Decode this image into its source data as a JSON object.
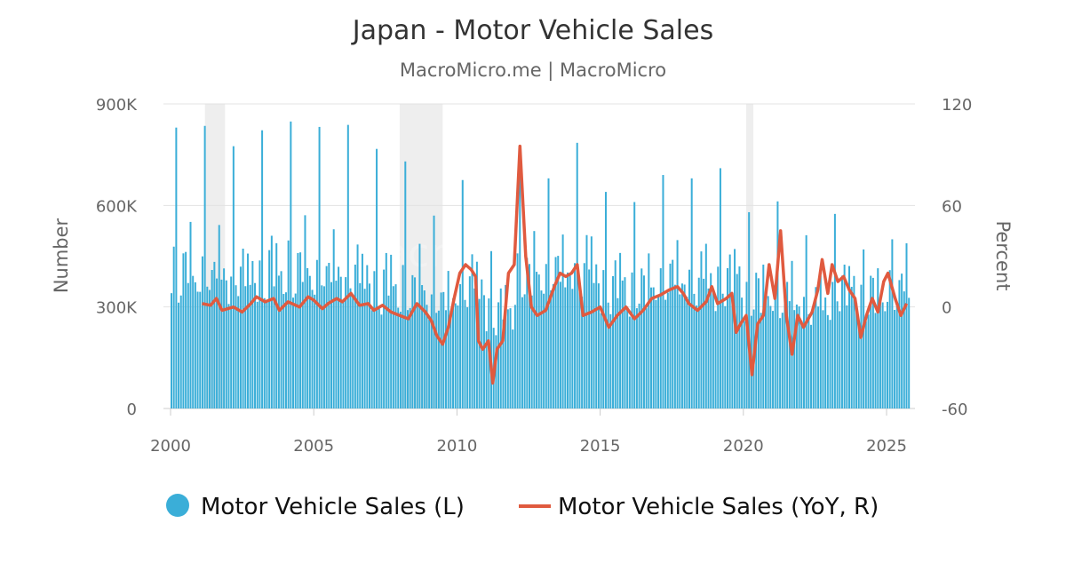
{
  "chart_data": {
    "type": "bar+line",
    "title": "Japan - Motor Vehicle Sales",
    "subtitle": "MacroMicro.me | MacroMicro",
    "watermark": "MacroMicro",
    "colors": {
      "bars": "#3aaed8",
      "line": "#e05a3f",
      "recession": "#eeeeee",
      "grid": "#e3e3e3",
      "tick_text": "#666666"
    },
    "y_left": {
      "label": "Number",
      "range": [
        0,
        900000
      ],
      "ticks": [
        0,
        300000,
        600000,
        900000
      ],
      "tick_labels": [
        "0",
        "300K",
        "600K",
        "900K"
      ]
    },
    "y_right": {
      "label": "Percent",
      "range": [
        -60,
        120
      ],
      "ticks": [
        -60,
        0,
        60,
        120
      ],
      "tick_labels": [
        "-60",
        "0",
        "60",
        "120"
      ]
    },
    "x_axis": {
      "range": [
        2000,
        2026
      ],
      "ticks": [
        2000,
        2005,
        2010,
        2015,
        2020,
        2025
      ],
      "tick_labels": [
        "2000",
        "2005",
        "2010",
        "2015",
        "2020",
        "2025"
      ]
    },
    "recession_bands": [
      [
        2001.2,
        2001.9
      ],
      [
        2008.0,
        2009.5
      ],
      [
        2020.1,
        2020.35
      ]
    ],
    "legend": [
      {
        "name": "Motor Vehicle Sales (L)",
        "marker": "circle"
      },
      {
        "name": "Motor Vehicle Sales (YoY, R)",
        "marker": "line"
      }
    ],
    "series": [
      {
        "name": "Motor Vehicle Sales (L)",
        "axis": "left",
        "kind": "bar",
        "frequency": "monthly",
        "start": 2000.0,
        "base_by_year": [
          [
            2000,
            420000
          ],
          [
            2001,
            420000
          ],
          [
            2002,
            410000
          ],
          [
            2003,
            420000
          ],
          [
            2004,
            430000
          ],
          [
            2005,
            420000
          ],
          [
            2006,
            410000
          ],
          [
            2007,
            380000
          ],
          [
            2008,
            370000
          ],
          [
            2009,
            330000
          ],
          [
            2010,
            380000
          ],
          [
            2011,
            300000
          ],
          [
            2012,
            410000
          ],
          [
            2013,
            420000
          ],
          [
            2014,
            430000
          ],
          [
            2015,
            380000
          ],
          [
            2016,
            370000
          ],
          [
            2017,
            400000
          ],
          [
            2018,
            400000
          ],
          [
            2019,
            400000
          ],
          [
            2020,
            350000
          ],
          [
            2021,
            340000
          ],
          [
            2022,
            320000
          ],
          [
            2023,
            370000
          ],
          [
            2024,
            340000
          ],
          [
            2025,
            370000
          ]
        ],
        "march_peaks": [
          [
            2000,
            830000
          ],
          [
            2001,
            835000
          ],
          [
            2002,
            775000
          ],
          [
            2003,
            822000
          ],
          [
            2004,
            848000
          ],
          [
            2005,
            832000
          ],
          [
            2006,
            838000
          ],
          [
            2007,
            767000
          ],
          [
            2008,
            730000
          ],
          [
            2009,
            570000
          ],
          [
            2010,
            675000
          ],
          [
            2011,
            465000
          ],
          [
            2012,
            762000
          ],
          [
            2013,
            680000
          ],
          [
            2014,
            785000
          ],
          [
            2015,
            640000
          ],
          [
            2016,
            610000
          ],
          [
            2017,
            690000
          ],
          [
            2018,
            680000
          ],
          [
            2019,
            710000
          ],
          [
            2020,
            580000
          ],
          [
            2021,
            612000
          ],
          [
            2022,
            512000
          ],
          [
            2023,
            575000
          ],
          [
            2024,
            470000
          ],
          [
            2025,
            500000
          ]
        ],
        "end": 2025.75
      },
      {
        "name": "Motor Vehicle Sales (YoY, R)",
        "axis": "right",
        "kind": "line",
        "points": [
          [
            2001.1,
            2
          ],
          [
            2001.4,
            1
          ],
          [
            2001.6,
            5
          ],
          [
            2001.8,
            -2
          ],
          [
            2002.2,
            0
          ],
          [
            2002.5,
            -3
          ],
          [
            2002.8,
            2
          ],
          [
            2003.0,
            6
          ],
          [
            2003.3,
            3
          ],
          [
            2003.6,
            5
          ],
          [
            2003.8,
            -2
          ],
          [
            2004.1,
            3
          ],
          [
            2004.5,
            0
          ],
          [
            2004.8,
            6
          ],
          [
            2005.0,
            4
          ],
          [
            2005.3,
            -1
          ],
          [
            2005.5,
            2
          ],
          [
            2005.8,
            5
          ],
          [
            2006.0,
            3
          ],
          [
            2006.3,
            8
          ],
          [
            2006.6,
            1
          ],
          [
            2006.9,
            2
          ],
          [
            2007.1,
            -2
          ],
          [
            2007.4,
            1
          ],
          [
            2007.7,
            -3
          ],
          [
            2008.0,
            -5
          ],
          [
            2008.3,
            -7
          ],
          [
            2008.6,
            2
          ],
          [
            2008.9,
            -3
          ],
          [
            2009.1,
            -8
          ],
          [
            2009.3,
            -17
          ],
          [
            2009.5,
            -22
          ],
          [
            2009.7,
            -12
          ],
          [
            2009.9,
            5
          ],
          [
            2010.1,
            20
          ],
          [
            2010.3,
            25
          ],
          [
            2010.5,
            22
          ],
          [
            2010.65,
            18
          ],
          [
            2010.75,
            -20
          ],
          [
            2010.9,
            -25
          ],
          [
            2011.1,
            -20
          ],
          [
            2011.25,
            -45
          ],
          [
            2011.4,
            -25
          ],
          [
            2011.6,
            -20
          ],
          [
            2011.8,
            20
          ],
          [
            2012.0,
            25
          ],
          [
            2012.2,
            95
          ],
          [
            2012.4,
            30
          ],
          [
            2012.6,
            0
          ],
          [
            2012.8,
            -5
          ],
          [
            2013.1,
            -2
          ],
          [
            2013.4,
            12
          ],
          [
            2013.6,
            20
          ],
          [
            2013.8,
            18
          ],
          [
            2014.0,
            20
          ],
          [
            2014.2,
            25
          ],
          [
            2014.4,
            -5
          ],
          [
            2014.7,
            -3
          ],
          [
            2015.0,
            0
          ],
          [
            2015.3,
            -12
          ],
          [
            2015.6,
            -5
          ],
          [
            2015.9,
            0
          ],
          [
            2016.2,
            -7
          ],
          [
            2016.5,
            -2
          ],
          [
            2016.8,
            5
          ],
          [
            2017.1,
            7
          ],
          [
            2017.4,
            10
          ],
          [
            2017.7,
            12
          ],
          [
            2017.9,
            8
          ],
          [
            2018.1,
            2
          ],
          [
            2018.4,
            -2
          ],
          [
            2018.7,
            3
          ],
          [
            2018.9,
            12
          ],
          [
            2019.1,
            2
          ],
          [
            2019.4,
            5
          ],
          [
            2019.6,
            8
          ],
          [
            2019.75,
            -15
          ],
          [
            2019.9,
            -10
          ],
          [
            2020.1,
            -5
          ],
          [
            2020.3,
            -40
          ],
          [
            2020.5,
            -10
          ],
          [
            2020.7,
            -5
          ],
          [
            2020.9,
            25
          ],
          [
            2021.1,
            5
          ],
          [
            2021.3,
            45
          ],
          [
            2021.5,
            -5
          ],
          [
            2021.7,
            -28
          ],
          [
            2021.9,
            -5
          ],
          [
            2022.1,
            -12
          ],
          [
            2022.4,
            -3
          ],
          [
            2022.6,
            10
          ],
          [
            2022.75,
            28
          ],
          [
            2022.95,
            8
          ],
          [
            2023.1,
            25
          ],
          [
            2023.3,
            15
          ],
          [
            2023.5,
            18
          ],
          [
            2023.7,
            10
          ],
          [
            2023.9,
            5
          ],
          [
            2024.1,
            -18
          ],
          [
            2024.3,
            -5
          ],
          [
            2024.5,
            5
          ],
          [
            2024.7,
            -3
          ],
          [
            2024.9,
            15
          ],
          [
            2025.05,
            20
          ],
          [
            2025.3,
            5
          ],
          [
            2025.5,
            -5
          ],
          [
            2025.7,
            2
          ]
        ]
      }
    ]
  }
}
